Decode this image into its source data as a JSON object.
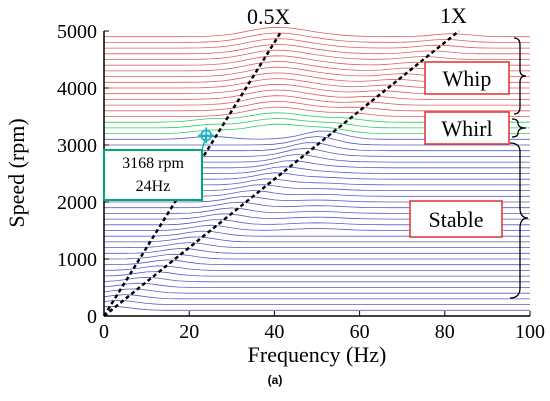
{
  "chart_data": {
    "type": "line",
    "title": "",
    "xlabel": "Frequency (Hz)",
    "ylabel": "Speed (rpm)",
    "caption": "(a)",
    "xlim": [
      0,
      100
    ],
    "ylim": [
      0,
      5000
    ],
    "x_ticks": [
      "0",
      "20",
      "40",
      "60",
      "80",
      "100"
    ],
    "y_ticks": [
      "0",
      "1000",
      "2000",
      "3000",
      "4000",
      "5000"
    ],
    "grid": false,
    "waterfall": {
      "speeds_rpm": [
        100,
        200,
        300,
        400,
        500,
        600,
        700,
        800,
        900,
        1000,
        1100,
        1200,
        1300,
        1400,
        1500,
        1600,
        1700,
        1800,
        1900,
        2000,
        2100,
        2200,
        2300,
        2400,
        2500,
        2600,
        2700,
        2800,
        2900,
        3000,
        3100,
        3200,
        3300,
        3400,
        3500,
        3600,
        3700,
        3800,
        3900,
        4000,
        4100,
        4200,
        4300,
        4400,
        4500,
        4600,
        4700,
        4800,
        4900
      ],
      "regimes": [
        {
          "name": "Stable",
          "from_rpm": 100,
          "to_rpm": 3100,
          "color": "#5b5bc8"
        },
        {
          "name": "Whirl",
          "from_rpm": 3200,
          "to_rpm": 3400,
          "color": "#33cc66"
        },
        {
          "name": "Whip",
          "from_rpm": 3500,
          "to_rpm": 4900,
          "color": "#e06060"
        }
      ]
    },
    "reference_lines": [
      {
        "label": "0.5X",
        "ratio": 0.5
      },
      {
        "label": "1X",
        "ratio": 1.0
      }
    ],
    "highlight": {
      "speed_rpm": 3168,
      "frequency_hz": 24,
      "label_line1": "3168 rpm",
      "label_line2": "24Hz"
    },
    "region_labels": [
      "Whip",
      "Whirl",
      "Stable"
    ]
  }
}
